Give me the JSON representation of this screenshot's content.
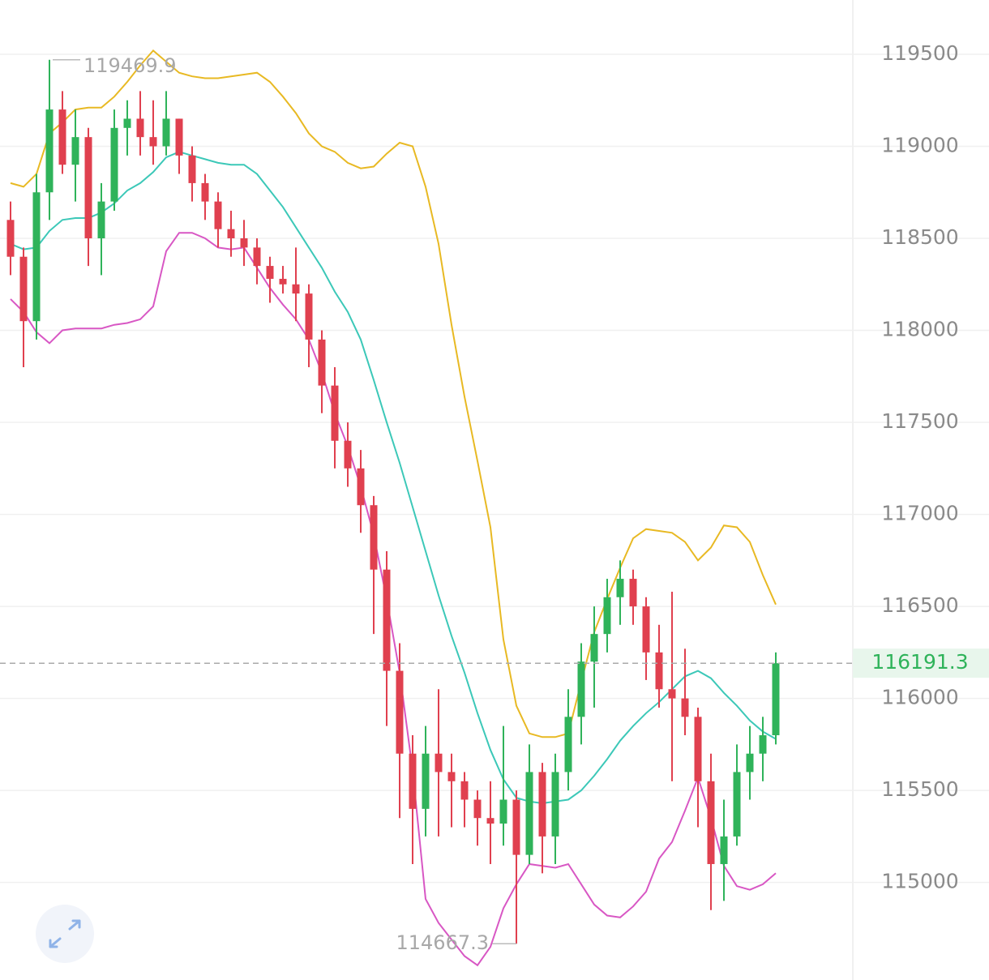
{
  "chart_data": {
    "type": "candlestick",
    "ylim": [
      114470,
      119795
    ],
    "yticks": [
      115000,
      115500,
      116000,
      116500,
      117000,
      117500,
      118000,
      118500,
      119000,
      119500
    ],
    "grid": true,
    "up_color": "#2fb35a",
    "down_color": "#e0404f",
    "current_price_line": true,
    "open": [
      118600,
      118400,
      118050,
      118750,
      119200,
      118900,
      119050,
      118500,
      118700,
      119100,
      119150,
      119050,
      119000,
      119150,
      118950,
      118800,
      118700,
      118550,
      118500,
      118450,
      118350,
      118280,
      118250,
      118200,
      117950,
      117700,
      117400,
      117250,
      117050,
      116700,
      116150,
      115700,
      115400,
      115700,
      115600,
      115550,
      115450,
      115350,
      115320,
      115450,
      115150,
      115600,
      115250,
      115600,
      115900,
      116200,
      116350,
      116550,
      116650,
      116500,
      116250,
      116050,
      116000,
      115900,
      115550,
      115100,
      115250,
      115600,
      115700,
      115800
    ],
    "high": [
      118700,
      118450,
      118850,
      119469.9,
      119300,
      119200,
      119100,
      118800,
      119200,
      119250,
      119300,
      119250,
      119300,
      119150,
      119000,
      118850,
      118750,
      118650,
      118600,
      118500,
      118400,
      118350,
      118450,
      118250,
      118000,
      117800,
      117500,
      117350,
      117100,
      116800,
      116300,
      115800,
      115850,
      116050,
      115700,
      115600,
      115500,
      115550,
      115850,
      115500,
      115750,
      115650,
      115700,
      116050,
      116300,
      116500,
      116650,
      116750,
      116700,
      116550,
      116400,
      116580,
      116270,
      115950,
      115700,
      115450,
      115750,
      115850,
      115900,
      116250
    ],
    "low": [
      118300,
      117800,
      117950,
      118600,
      118850,
      118700,
      118350,
      118300,
      118650,
      118950,
      118950,
      118900,
      118950,
      118850,
      118700,
      118600,
      118450,
      118400,
      118350,
      118250,
      118150,
      118200,
      118050,
      117800,
      117550,
      117250,
      117150,
      116900,
      116350,
      115850,
      115350,
      115100,
      115250,
      115250,
      115300,
      115300,
      115200,
      115100,
      115200,
      114667.3,
      115100,
      115050,
      115100,
      115500,
      115750,
      115950,
      116250,
      116400,
      116400,
      116100,
      115950,
      115550,
      115800,
      115300,
      114850,
      114900,
      115200,
      115450,
      115550,
      115750
    ],
    "close": [
      118400,
      118050,
      118750,
      119200,
      118900,
      119050,
      118500,
      118700,
      119100,
      119150,
      119050,
      119000,
      119150,
      118950,
      118800,
      118700,
      118550,
      118500,
      118450,
      118350,
      118280,
      118250,
      118200,
      117950,
      117700,
      117400,
      117250,
      117050,
      116700,
      116150,
      115700,
      115400,
      115700,
      115600,
      115550,
      115450,
      115350,
      115320,
      115450,
      115150,
      115600,
      115250,
      115600,
      115900,
      116200,
      116350,
      116550,
      116650,
      116500,
      116250,
      116050,
      116000,
      115900,
      115550,
      115100,
      115250,
      115600,
      115700,
      115800,
      116191.3
    ],
    "bands": [
      {
        "color": "#e8b923",
        "values": [
          118800,
          118780,
          118850,
          119070,
          119130,
          119200,
          119210,
          119210,
          119270,
          119350,
          119440,
          119520,
          119460,
          119400,
          119380,
          119370,
          119370,
          119380,
          119390,
          119400,
          119350,
          119270,
          119180,
          119070,
          119000,
          118970,
          118910,
          118880,
          118890,
          118960,
          119020,
          119000,
          118780,
          118470,
          118030,
          117640,
          117290,
          116930,
          116320,
          115960,
          115810,
          115790,
          115790,
          115810,
          116090,
          116360,
          116540,
          116710,
          116870,
          116920,
          116910,
          116900,
          116850,
          116750,
          116820,
          116940,
          116930,
          116850,
          116670,
          116510
        ]
      },
      {
        "color": "#3cc8b8",
        "values": [
          118470,
          118440,
          118450,
          118540,
          118600,
          118610,
          118610,
          118640,
          118690,
          118760,
          118800,
          118860,
          118940,
          118970,
          118950,
          118930,
          118910,
          118900,
          118900,
          118850,
          118760,
          118670,
          118560,
          118450,
          118340,
          118210,
          118100,
          117950,
          117730,
          117500,
          117280,
          117040,
          116800,
          116560,
          116340,
          116140,
          115920,
          115720,
          115560,
          115460,
          115440,
          115430,
          115440,
          115450,
          115500,
          115580,
          115670,
          115770,
          115850,
          115920,
          115980,
          116050,
          116120,
          116150,
          116110,
          116030,
          115960,
          115880,
          115820,
          115780
        ]
      },
      {
        "color": "#d857c4",
        "values": [
          118170,
          118100,
          117990,
          117930,
          118000,
          118010,
          118010,
          118010,
          118030,
          118040,
          118060,
          118130,
          118430,
          118530,
          118530,
          118500,
          118450,
          118440,
          118450,
          118340,
          118230,
          118140,
          118060,
          117950,
          117770,
          117550,
          117370,
          117150,
          116890,
          116540,
          116140,
          115610,
          114910,
          114780,
          114690,
          114600,
          114550,
          114650,
          114860,
          114990,
          115100,
          115090,
          115080,
          115100,
          114990,
          114880,
          114820,
          114810,
          114870,
          114950,
          115130,
          115220,
          115390,
          115570,
          115350,
          115090,
          114980,
          114960,
          114990,
          115050
        ]
      }
    ]
  }
}
